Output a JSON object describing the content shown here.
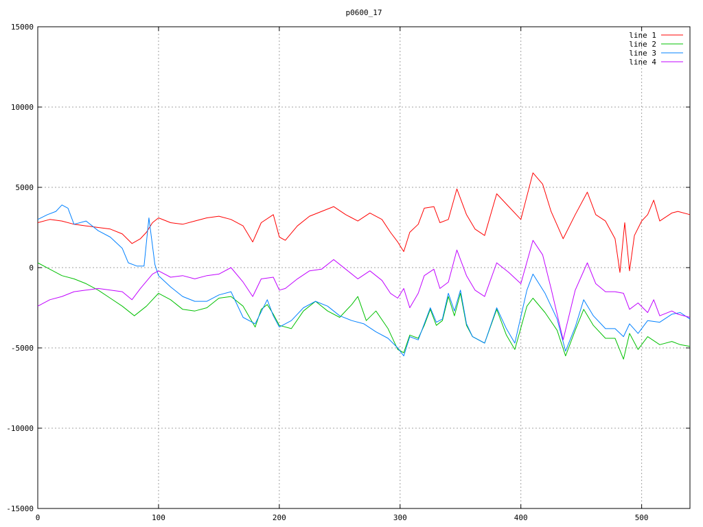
{
  "chart_data": {
    "type": "line",
    "title": "p0600_17",
    "xlabel": "",
    "ylabel": "",
    "xlim": [
      0,
      540
    ],
    "ylim": [
      -15000,
      15000
    ],
    "x_ticks": [
      0,
      100,
      200,
      300,
      400,
      500
    ],
    "y_ticks": [
      -15000,
      -10000,
      -5000,
      0,
      5000,
      10000,
      15000
    ],
    "x_tick_labels": [
      "0",
      "100",
      "200",
      "300",
      "400",
      "500"
    ],
    "y_tick_labels": [
      "-15000",
      "-10000",
      "-5000",
      "0",
      "5000",
      "10000",
      "15000"
    ],
    "grid": true,
    "legend_position": "top-right",
    "series": [
      {
        "name": "line 1",
        "color": "#ff0000",
        "points": [
          [
            0,
            2800
          ],
          [
            10,
            3000
          ],
          [
            20,
            2900
          ],
          [
            30,
            2700
          ],
          [
            40,
            2600
          ],
          [
            50,
            2500
          ],
          [
            60,
            2400
          ],
          [
            70,
            2100
          ],
          [
            78,
            1500
          ],
          [
            85,
            1800
          ],
          [
            90,
            2200
          ],
          [
            95,
            2800
          ],
          [
            100,
            3100
          ],
          [
            110,
            2800
          ],
          [
            120,
            2700
          ],
          [
            130,
            2900
          ],
          [
            140,
            3100
          ],
          [
            150,
            3200
          ],
          [
            160,
            3000
          ],
          [
            170,
            2600
          ],
          [
            178,
            1600
          ],
          [
            185,
            2800
          ],
          [
            195,
            3300
          ],
          [
            200,
            1900
          ],
          [
            205,
            1700
          ],
          [
            215,
            2600
          ],
          [
            225,
            3200
          ],
          [
            235,
            3500
          ],
          [
            245,
            3800
          ],
          [
            255,
            3300
          ],
          [
            265,
            2900
          ],
          [
            275,
            3400
          ],
          [
            285,
            3000
          ],
          [
            292,
            2200
          ],
          [
            298,
            1600
          ],
          [
            303,
            1000
          ],
          [
            308,
            2200
          ],
          [
            315,
            2700
          ],
          [
            320,
            3700
          ],
          [
            328,
            3800
          ],
          [
            333,
            2800
          ],
          [
            340,
            3000
          ],
          [
            347,
            4900
          ],
          [
            355,
            3300
          ],
          [
            362,
            2400
          ],
          [
            370,
            2000
          ],
          [
            380,
            4600
          ],
          [
            390,
            3800
          ],
          [
            400,
            3000
          ],
          [
            410,
            5900
          ],
          [
            418,
            5200
          ],
          [
            425,
            3500
          ],
          [
            435,
            1800
          ],
          [
            445,
            3300
          ],
          [
            455,
            4700
          ],
          [
            462,
            3300
          ],
          [
            470,
            2900
          ],
          [
            478,
            1800
          ],
          [
            482,
            -300
          ],
          [
            486,
            2800
          ],
          [
            490,
            -200
          ],
          [
            494,
            2000
          ],
          [
            500,
            2900
          ],
          [
            505,
            3300
          ],
          [
            510,
            4200
          ],
          [
            515,
            2900
          ],
          [
            525,
            3400
          ],
          [
            530,
            3500
          ],
          [
            540,
            3300
          ]
        ]
      },
      {
        "name": "line 2",
        "color": "#00c000",
        "points": [
          [
            0,
            300
          ],
          [
            10,
            -100
          ],
          [
            20,
            -500
          ],
          [
            30,
            -700
          ],
          [
            40,
            -1000
          ],
          [
            50,
            -1400
          ],
          [
            60,
            -1900
          ],
          [
            70,
            -2400
          ],
          [
            80,
            -3000
          ],
          [
            90,
            -2400
          ],
          [
            100,
            -1600
          ],
          [
            110,
            -2000
          ],
          [
            120,
            -2600
          ],
          [
            130,
            -2700
          ],
          [
            140,
            -2500
          ],
          [
            150,
            -1900
          ],
          [
            160,
            -1800
          ],
          [
            170,
            -2400
          ],
          [
            180,
            -3700
          ],
          [
            185,
            -2600
          ],
          [
            190,
            -2300
          ],
          [
            195,
            -2900
          ],
          [
            200,
            -3600
          ],
          [
            210,
            -3800
          ],
          [
            220,
            -2700
          ],
          [
            230,
            -2100
          ],
          [
            240,
            -2700
          ],
          [
            250,
            -3100
          ],
          [
            260,
            -2300
          ],
          [
            265,
            -1800
          ],
          [
            272,
            -3300
          ],
          [
            280,
            -2700
          ],
          [
            290,
            -3800
          ],
          [
            298,
            -5100
          ],
          [
            303,
            -5300
          ],
          [
            308,
            -4200
          ],
          [
            315,
            -4400
          ],
          [
            320,
            -3600
          ],
          [
            325,
            -2600
          ],
          [
            330,
            -3600
          ],
          [
            335,
            -3300
          ],
          [
            340,
            -1800
          ],
          [
            345,
            -3000
          ],
          [
            350,
            -1600
          ],
          [
            355,
            -3600
          ],
          [
            360,
            -4300
          ],
          [
            370,
            -4700
          ],
          [
            380,
            -2600
          ],
          [
            388,
            -4200
          ],
          [
            395,
            -5100
          ],
          [
            405,
            -2400
          ],
          [
            410,
            -1900
          ],
          [
            420,
            -2800
          ],
          [
            430,
            -3900
          ],
          [
            437,
            -5500
          ],
          [
            445,
            -3900
          ],
          [
            452,
            -2600
          ],
          [
            460,
            -3600
          ],
          [
            470,
            -4400
          ],
          [
            478,
            -4400
          ],
          [
            485,
            -5700
          ],
          [
            490,
            -4100
          ],
          [
            497,
            -5100
          ],
          [
            505,
            -4300
          ],
          [
            515,
            -4800
          ],
          [
            525,
            -4600
          ],
          [
            532,
            -4800
          ],
          [
            540,
            -4900
          ]
        ]
      },
      {
        "name": "line 3",
        "color": "#0080ff",
        "points": [
          [
            0,
            3000
          ],
          [
            8,
            3300
          ],
          [
            15,
            3500
          ],
          [
            20,
            3900
          ],
          [
            25,
            3700
          ],
          [
            30,
            2700
          ],
          [
            40,
            2900
          ],
          [
            50,
            2300
          ],
          [
            60,
            1900
          ],
          [
            70,
            1200
          ],
          [
            75,
            300
          ],
          [
            82,
            100
          ],
          [
            88,
            100
          ],
          [
            92,
            3100
          ],
          [
            97,
            200
          ],
          [
            100,
            -500
          ],
          [
            110,
            -1200
          ],
          [
            120,
            -1800
          ],
          [
            130,
            -2100
          ],
          [
            140,
            -2100
          ],
          [
            150,
            -1700
          ],
          [
            160,
            -1500
          ],
          [
            170,
            -3100
          ],
          [
            180,
            -3500
          ],
          [
            190,
            -2000
          ],
          [
            195,
            -3000
          ],
          [
            200,
            -3700
          ],
          [
            210,
            -3300
          ],
          [
            220,
            -2500
          ],
          [
            230,
            -2100
          ],
          [
            240,
            -2400
          ],
          [
            250,
            -3000
          ],
          [
            260,
            -3300
          ],
          [
            270,
            -3500
          ],
          [
            280,
            -4000
          ],
          [
            290,
            -4400
          ],
          [
            298,
            -5000
          ],
          [
            303,
            -5500
          ],
          [
            308,
            -4300
          ],
          [
            315,
            -4500
          ],
          [
            320,
            -3500
          ],
          [
            325,
            -2500
          ],
          [
            330,
            -3400
          ],
          [
            335,
            -3200
          ],
          [
            340,
            -1600
          ],
          [
            345,
            -2700
          ],
          [
            350,
            -1400
          ],
          [
            355,
            -3500
          ],
          [
            360,
            -4300
          ],
          [
            370,
            -4700
          ],
          [
            380,
            -2500
          ],
          [
            388,
            -3800
          ],
          [
            395,
            -4700
          ],
          [
            405,
            -1400
          ],
          [
            410,
            -400
          ],
          [
            420,
            -1600
          ],
          [
            430,
            -3200
          ],
          [
            437,
            -5200
          ],
          [
            445,
            -3700
          ],
          [
            452,
            -2000
          ],
          [
            460,
            -3000
          ],
          [
            470,
            -3800
          ],
          [
            478,
            -3800
          ],
          [
            485,
            -4300
          ],
          [
            490,
            -3500
          ],
          [
            497,
            -4100
          ],
          [
            505,
            -3300
          ],
          [
            515,
            -3400
          ],
          [
            525,
            -2900
          ],
          [
            532,
            -2800
          ],
          [
            540,
            -3200
          ]
        ]
      },
      {
        "name": "line 4",
        "color": "#c000ff",
        "points": [
          [
            0,
            -2400
          ],
          [
            10,
            -2000
          ],
          [
            20,
            -1800
          ],
          [
            30,
            -1500
          ],
          [
            40,
            -1400
          ],
          [
            50,
            -1300
          ],
          [
            60,
            -1400
          ],
          [
            70,
            -1500
          ],
          [
            78,
            -2000
          ],
          [
            85,
            -1300
          ],
          [
            95,
            -400
          ],
          [
            100,
            -200
          ],
          [
            110,
            -600
          ],
          [
            120,
            -500
          ],
          [
            130,
            -700
          ],
          [
            140,
            -500
          ],
          [
            150,
            -400
          ],
          [
            160,
            0
          ],
          [
            170,
            -900
          ],
          [
            178,
            -1800
          ],
          [
            185,
            -700
          ],
          [
            195,
            -600
          ],
          [
            200,
            -1400
          ],
          [
            205,
            -1300
          ],
          [
            215,
            -700
          ],
          [
            225,
            -200
          ],
          [
            235,
            -100
          ],
          [
            245,
            500
          ],
          [
            255,
            -100
          ],
          [
            265,
            -700
          ],
          [
            275,
            -200
          ],
          [
            285,
            -800
          ],
          [
            292,
            -1600
          ],
          [
            298,
            -1900
          ],
          [
            303,
            -1300
          ],
          [
            308,
            -2500
          ],
          [
            315,
            -1600
          ],
          [
            320,
            -500
          ],
          [
            328,
            -100
          ],
          [
            333,
            -1300
          ],
          [
            340,
            -900
          ],
          [
            347,
            1100
          ],
          [
            355,
            -500
          ],
          [
            362,
            -1400
          ],
          [
            370,
            -1800
          ],
          [
            380,
            300
          ],
          [
            390,
            -300
          ],
          [
            400,
            -1000
          ],
          [
            410,
            1700
          ],
          [
            418,
            800
          ],
          [
            425,
            -1300
          ],
          [
            435,
            -4500
          ],
          [
            445,
            -1400
          ],
          [
            455,
            300
          ],
          [
            462,
            -1000
          ],
          [
            470,
            -1500
          ],
          [
            478,
            -1500
          ],
          [
            485,
            -1600
          ],
          [
            490,
            -2600
          ],
          [
            497,
            -2200
          ],
          [
            505,
            -2800
          ],
          [
            510,
            -2000
          ],
          [
            515,
            -3000
          ],
          [
            525,
            -2700
          ],
          [
            530,
            -2900
          ],
          [
            540,
            -3100
          ]
        ]
      }
    ]
  }
}
